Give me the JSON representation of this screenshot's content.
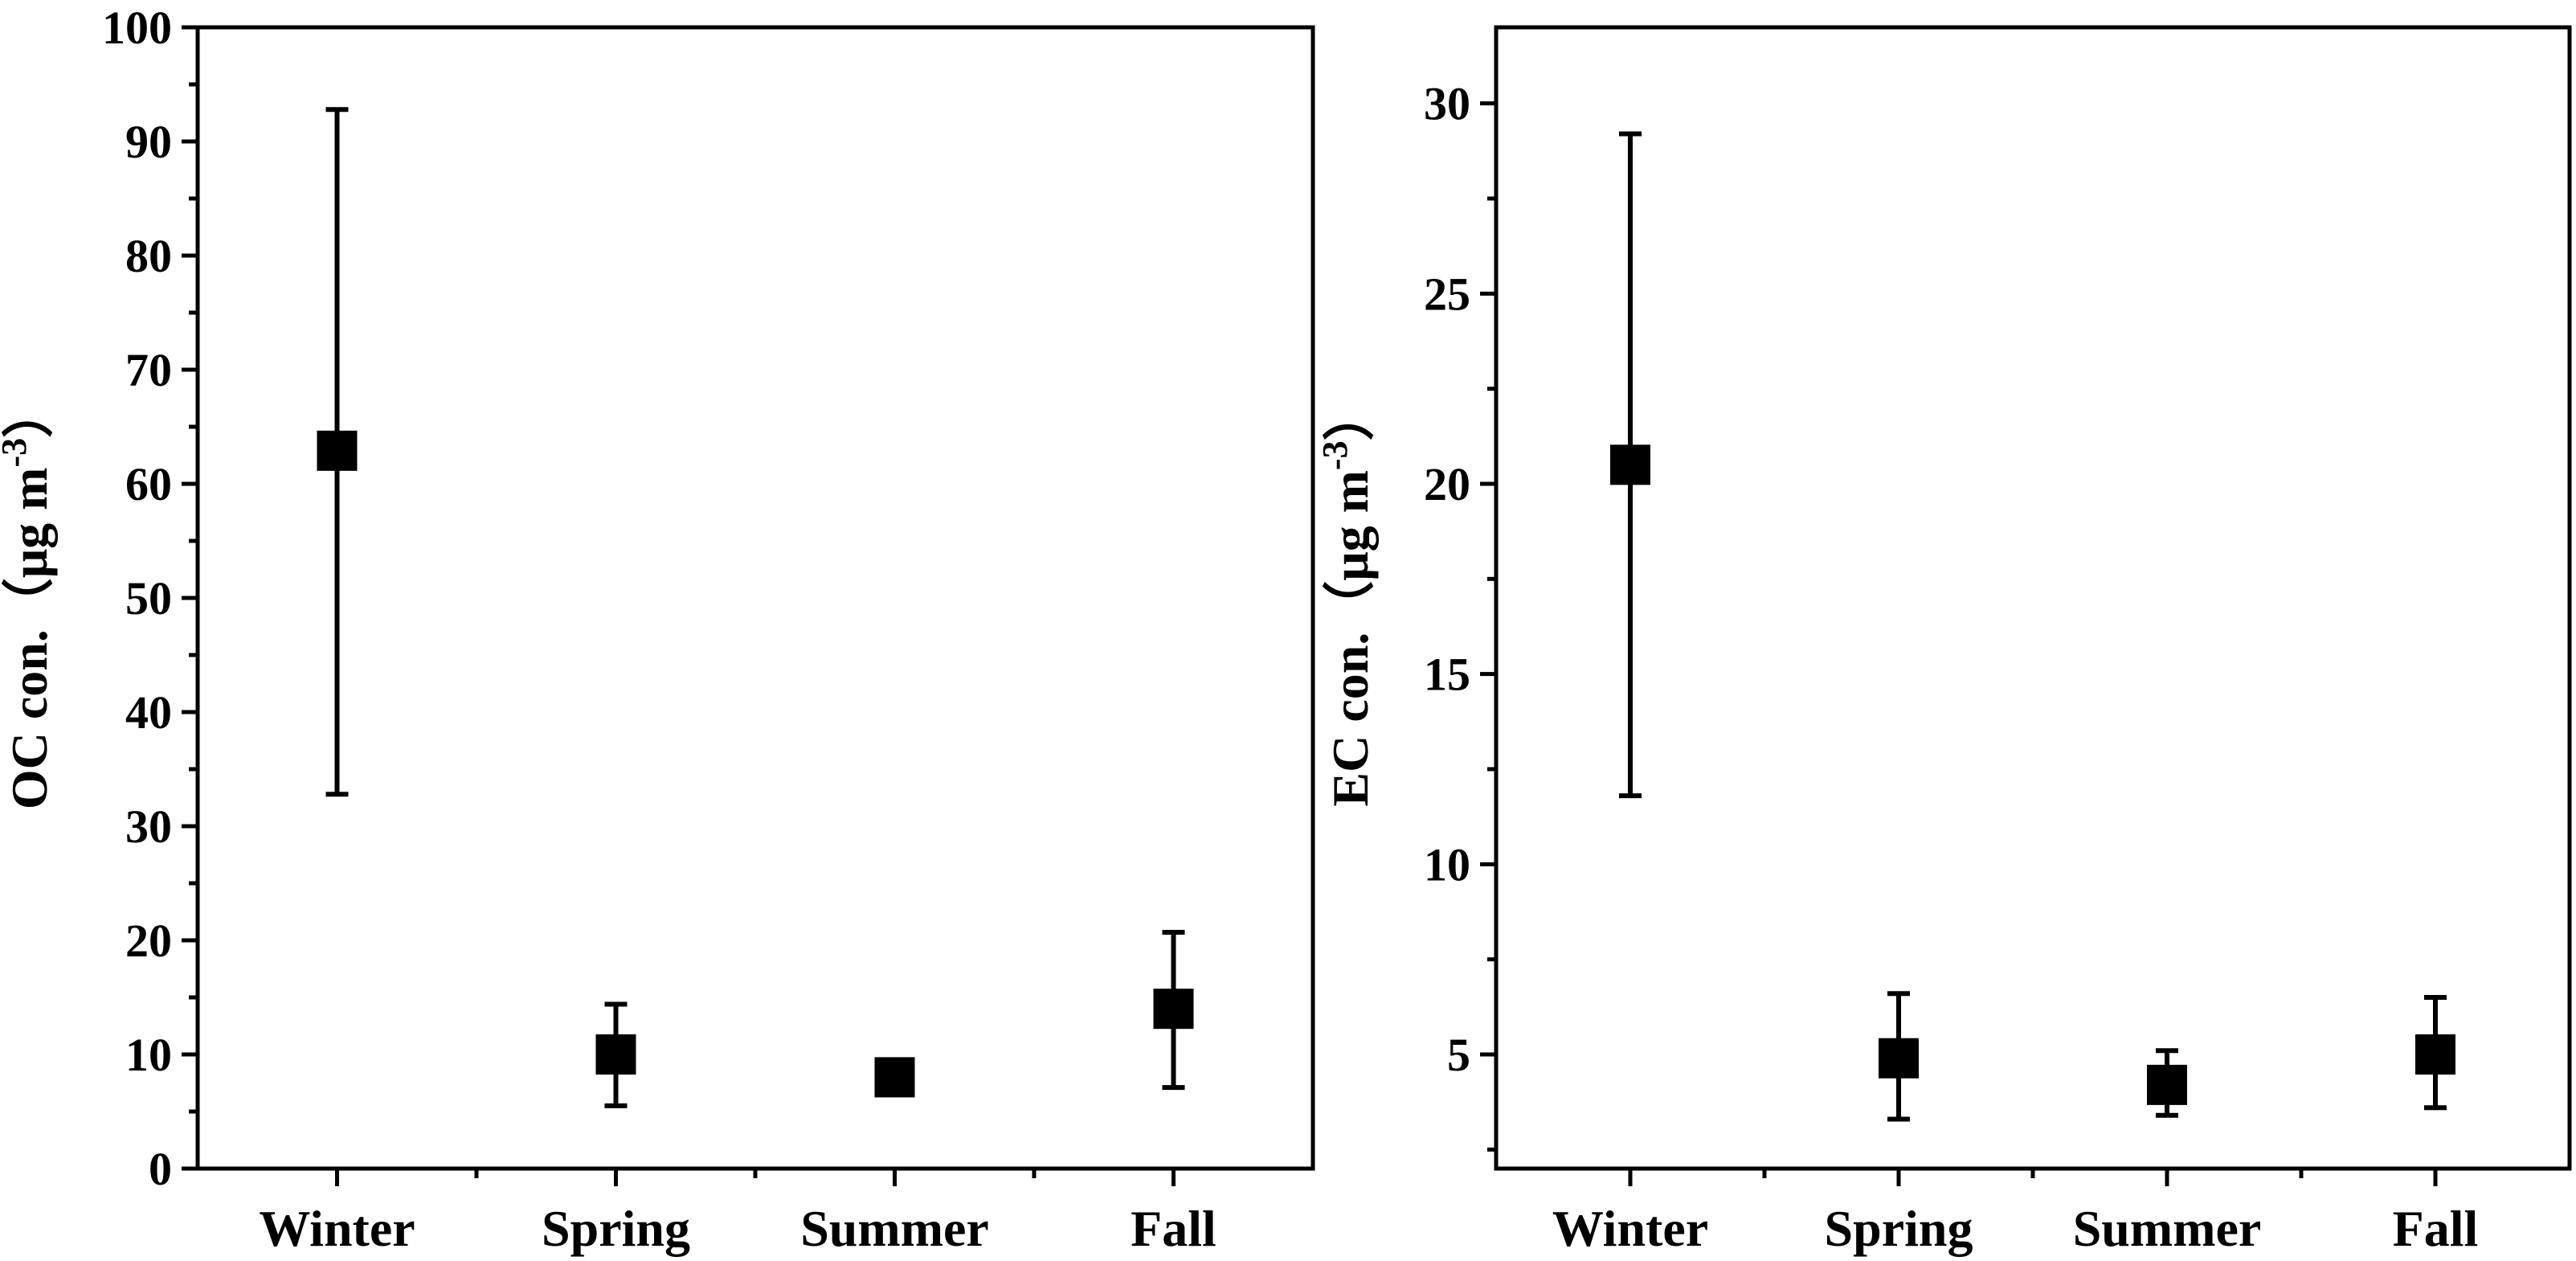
{
  "chart_data": [
    {
      "type": "scatter",
      "categories": [
        "Winter",
        "Spring",
        "Summer",
        "Fall"
      ],
      "ylabel": {
        "main": "OC con.（μg m",
        "sup": "-3",
        "close": "）"
      },
      "xlabel": "",
      "ylim": [
        0,
        100
      ],
      "yticks": [
        0,
        10,
        20,
        30,
        40,
        50,
        60,
        70,
        80,
        90,
        100
      ],
      "ytick_labels": [
        "0",
        "10",
        "20",
        "30",
        "40",
        "50",
        "60",
        "70",
        "80",
        "90",
        "100"
      ],
      "minor_ticks": true,
      "series": [
        {
          "values": [
            62.9,
            10.0,
            8.0,
            14.0
          ],
          "err_low": [
            32.8,
            5.5,
            6.5,
            7.1
          ],
          "err_high": [
            92.8,
            14.4,
            9.3,
            20.7
          ]
        }
      ]
    },
    {
      "type": "scatter",
      "categories": [
        "Winter",
        "Spring",
        "Summer",
        "Fall"
      ],
      "ylabel": {
        "main": "EC con.（μg m",
        "sup": "-3",
        "close": "）"
      },
      "xlabel": "",
      "ylim": [
        2.0,
        32.0
      ],
      "yticks": [
        5,
        10,
        15,
        20,
        25,
        30
      ],
      "ytick_labels": [
        "5",
        "10",
        "15",
        "20",
        "25",
        "30"
      ],
      "minor_ticks": true,
      "series": [
        {
          "values": [
            20.5,
            4.9,
            4.2,
            5.0
          ],
          "err_low": [
            11.8,
            3.3,
            3.4,
            3.6
          ],
          "err_high": [
            29.2,
            6.6,
            5.1,
            6.5
          ]
        }
      ]
    }
  ]
}
